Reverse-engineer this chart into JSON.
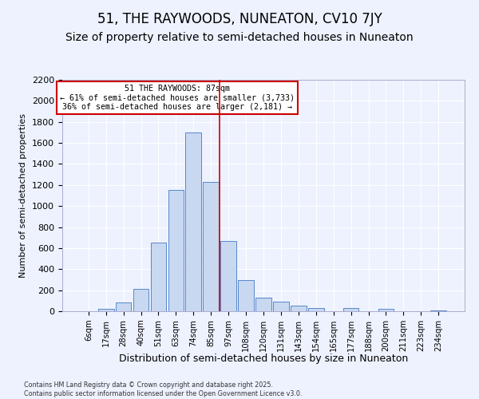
{
  "title": "51, THE RAYWOODS, NUNEATON, CV10 7JY",
  "subtitle": "Size of property relative to semi-detached houses in Nuneaton",
  "xlabel": "Distribution of semi-detached houses by size in Nuneaton",
  "ylabel": "Number of semi-detached properties",
  "footer_line1": "Contains HM Land Registry data © Crown copyright and database right 2025.",
  "footer_line2": "Contains public sector information licensed under the Open Government Licence v3.0.",
  "categories": [
    "6sqm",
    "17sqm",
    "28sqm",
    "40sqm",
    "51sqm",
    "63sqm",
    "74sqm",
    "85sqm",
    "97sqm",
    "108sqm",
    "120sqm",
    "131sqm",
    "143sqm",
    "154sqm",
    "165sqm",
    "177sqm",
    "188sqm",
    "200sqm",
    "211sqm",
    "223sqm",
    "234sqm"
  ],
  "values": [
    0,
    25,
    85,
    210,
    650,
    1150,
    1700,
    1230,
    670,
    295,
    130,
    90,
    50,
    30,
    0,
    30,
    0,
    20,
    0,
    0,
    10
  ],
  "bar_color": "#c8d8f0",
  "bar_edge_color": "#5588cc",
  "vline_label": "51 THE RAYWOODS: 87sqm",
  "annotation_smaller": "← 61% of semi-detached houses are smaller (3,733)",
  "annotation_larger": "36% of semi-detached houses are larger (2,181) →",
  "annotation_box_color": "#ffffff",
  "annotation_box_edge": "#cc0000",
  "vline_color": "#cc0000",
  "ylim": [
    0,
    2200
  ],
  "yticks": [
    0,
    200,
    400,
    600,
    800,
    1000,
    1200,
    1400,
    1600,
    1800,
    2000,
    2200
  ],
  "bg_color": "#eef2ff",
  "grid_color": "#ffffff",
  "title_fontsize": 12,
  "subtitle_fontsize": 10,
  "vline_pos": 7.5
}
